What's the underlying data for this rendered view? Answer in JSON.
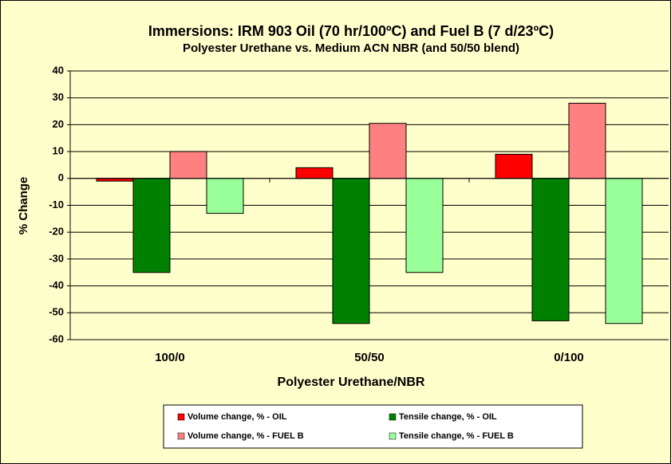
{
  "chart_data": {
    "type": "bar",
    "title": "Immersions: IRM 903 Oil (70 hr/100ºC) and Fuel B (7 d/23ºC)",
    "subtitle": "Polyester Urethane vs. Medium ACN NBR (and 50/50 blend)",
    "x_label": "Polyester Urethane/NBR",
    "y_label": "% Change",
    "categories": [
      "100/0",
      "50/50",
      "0/100"
    ],
    "series": [
      {
        "name": "Volume change, % - OIL",
        "color": "#ff0000",
        "values": [
          -1,
          4,
          9
        ]
      },
      {
        "name": "Tensile change, % - OIL",
        "color": "#008000",
        "values": [
          -35,
          -54,
          -53
        ]
      },
      {
        "name": "Volume change, % - FUEL B",
        "color": "#ff8080",
        "values": [
          10,
          20.5,
          28
        ]
      },
      {
        "name": "Tensile change, % - FUEL B",
        "color": "#99ff99",
        "values": [
          -13,
          -35,
          -54
        ]
      }
    ],
    "ylim": [
      -60,
      40
    ],
    "yticks": [
      -60,
      -50,
      -40,
      -30,
      -20,
      -10,
      0,
      10,
      20,
      30,
      40
    ],
    "grid": true,
    "legend": "bottom"
  }
}
